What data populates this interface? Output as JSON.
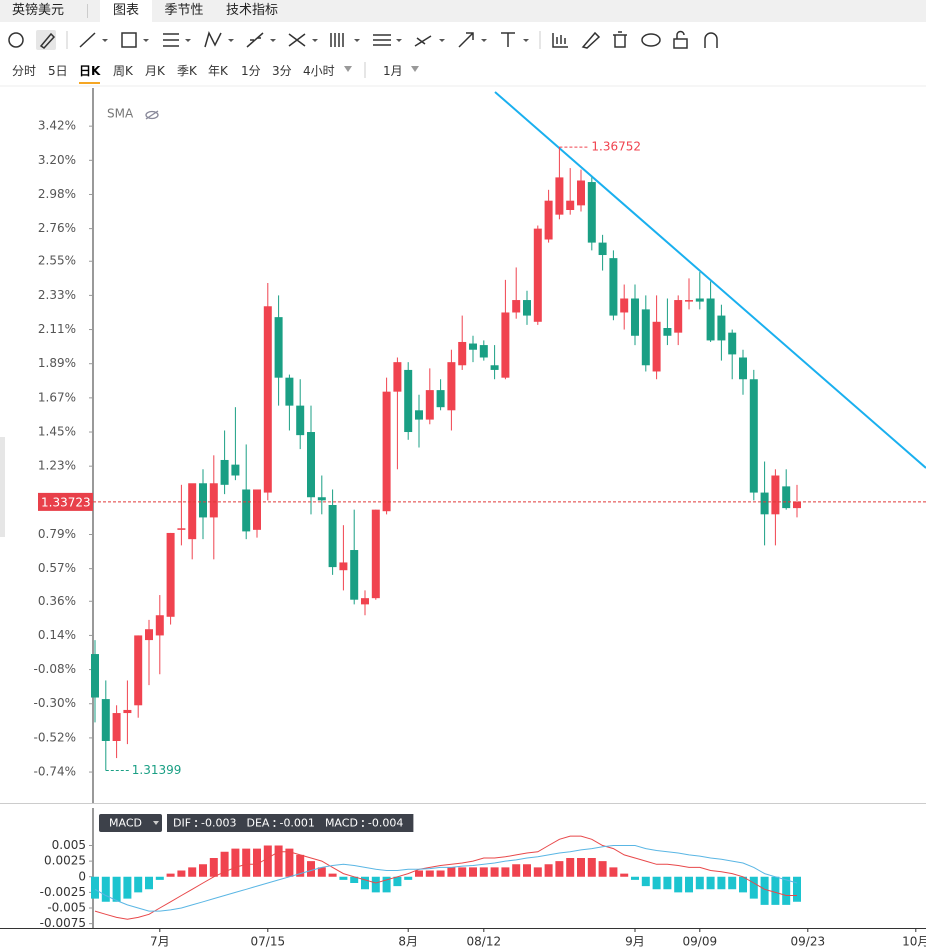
{
  "symbol": "英镑美元",
  "tabs": [
    "图表",
    "季节性",
    "技术指标"
  ],
  "periods": [
    "分时",
    "5日",
    "日K",
    "周K",
    "月K",
    "季K",
    "年K",
    "1分",
    "3分",
    "4小时"
  ],
  "range": "1月",
  "chart_data": [
    {
      "type": "candlestick",
      "indicator": "SMA",
      "up_color": "#f0434f",
      "down_color": "#1a9f84",
      "ylim": [
        -0.92,
        3.64
      ],
      "yticks": [
        {
          "value": 3.42,
          "label": "3.42%"
        },
        {
          "value": 3.2,
          "label": "3.20%"
        },
        {
          "value": 2.98,
          "label": "2.98%"
        },
        {
          "value": 2.76,
          "label": "2.76%"
        },
        {
          "value": 2.55,
          "label": "2.55%"
        },
        {
          "value": 2.33,
          "label": "2.33%"
        },
        {
          "value": 2.11,
          "label": "2.11%"
        },
        {
          "value": 1.89,
          "label": "1.89%"
        },
        {
          "value": 1.67,
          "label": "1.67%"
        },
        {
          "value": 1.45,
          "label": "1.45%"
        },
        {
          "value": 1.23,
          "label": "1.23%"
        },
        {
          "value": 0.79,
          "label": "0.79%"
        },
        {
          "value": 0.57,
          "label": "0.57%"
        },
        {
          "value": 0.36,
          "label": "0.36%"
        },
        {
          "value": 0.14,
          "label": "0.14%"
        },
        {
          "value": -0.08,
          "label": "-0.08%"
        },
        {
          "value": -0.3,
          "label": "-0.30%"
        },
        {
          "value": -0.52,
          "label": "-0.52%"
        },
        {
          "value": -0.74,
          "label": "-0.74%"
        }
      ],
      "high_label": "1.36752",
      "low_label": "1.31399",
      "last_label": "1.33723",
      "open": [
        0.02,
        -0.27,
        -0.54,
        -0.36,
        -0.31,
        0.11,
        0.14,
        0.26,
        0.82,
        0.76,
        1.12,
        0.9,
        1.27,
        1.24,
        1.08,
        0.82,
        1.06,
        2.19,
        1.8,
        1.62,
        1.45,
        1.03,
        0.98,
        0.56,
        0.69,
        0.34,
        0.38,
        0.94,
        1.71,
        1.85,
        1.59,
        1.53,
        1.72,
        1.59,
        1.88,
        2.02,
        2.01,
        1.88,
        1.8,
        2.22,
        2.3,
        2.16,
        2.69,
        2.85,
        2.88,
        2.91,
        3.06,
        2.67,
        2.57,
        2.22,
        2.31,
        2.24,
        1.84,
        2.12,
        2.09,
        2.29,
        2.31,
        2.31,
        2.2,
        2.09,
        1.93,
        1.79,
        1.06,
        0.92,
        1.1,
        0.96
      ],
      "high": [
        0.11,
        -0.15,
        -0.31,
        -0.15,
        0.14,
        0.24,
        0.4,
        0.8,
        1.11,
        1.11,
        1.21,
        1.3,
        1.46,
        1.61,
        1.37,
        1.08,
        2.41,
        2.33,
        1.82,
        1.79,
        1.62,
        1.17,
        1.08,
        0.85,
        0.95,
        0.43,
        0.95,
        1.8,
        1.93,
        1.9,
        1.69,
        1.86,
        1.79,
        1.98,
        2.2,
        2.07,
        2.04,
        2.01,
        2.43,
        2.51,
        2.36,
        2.78,
        3.01,
        3.285,
        3.15,
        3.14,
        3.09,
        2.72,
        2.62,
        2.4,
        2.4,
        2.33,
        2.33,
        2.31,
        2.33,
        2.44,
        2.48,
        2.42,
        2.27,
        2.11,
        1.98,
        1.85,
        1.26,
        1.21,
        1.21,
        1.11
      ],
      "low": [
        -0.42,
        -0.73,
        -0.65,
        -0.56,
        -0.39,
        -0.18,
        -0.11,
        0.21,
        0.72,
        0.63,
        0.76,
        0.63,
        1.05,
        1.14,
        0.76,
        0.77,
        1.01,
        1.62,
        1.46,
        1.34,
        0.92,
        0.92,
        0.53,
        0.43,
        0.34,
        0.27,
        0.37,
        0.92,
        1.21,
        1.4,
        1.35,
        1.5,
        1.59,
        1.46,
        1.85,
        1.9,
        1.91,
        1.79,
        1.79,
        2.18,
        2.14,
        2.14,
        2.67,
        2.82,
        2.85,
        2.87,
        2.62,
        2.49,
        2.17,
        2.11,
        2.01,
        1.84,
        1.79,
        2.01,
        2.01,
        2.24,
        2.24,
        2.03,
        1.91,
        1.79,
        1.69,
        1.01,
        0.72,
        0.72,
        0.95,
        0.9
      ],
      "close": [
        -0.26,
        -0.54,
        -0.36,
        -0.34,
        0.14,
        0.18,
        0.27,
        0.8,
        0.83,
        1.12,
        0.9,
        1.12,
        1.11,
        1.17,
        0.81,
        1.08,
        2.26,
        1.8,
        1.62,
        1.43,
        1.03,
        1.01,
        0.58,
        0.61,
        0.37,
        0.38,
        0.95,
        1.71,
        1.9,
        1.45,
        1.53,
        1.72,
        1.61,
        1.9,
        2.03,
        1.98,
        1.93,
        1.85,
        2.22,
        2.3,
        2.2,
        2.76,
        2.94,
        3.09,
        2.94,
        3.07,
        2.67,
        2.59,
        2.2,
        2.31,
        2.07,
        1.88,
        2.16,
        2.07,
        2.3,
        2.3,
        2.29,
        2.04,
        2.04,
        1.95,
        1.79,
        1.06,
        0.92,
        1.17,
        0.96,
        1.0
      ]
    },
    {
      "type": "macd",
      "indicator": "MACD",
      "ylim": [
        -0.0082,
        0.011
      ],
      "yticks": [
        0.005,
        0.0025,
        0,
        -0.0025,
        -0.005,
        -0.0075
      ],
      "xticks": [
        {
          "value": 6,
          "label": "7月"
        },
        {
          "value": 16,
          "label": "07/15"
        },
        {
          "value": 29,
          "label": "8月"
        },
        {
          "value": 36,
          "label": "08/12"
        },
        {
          "value": 50,
          "label": "9月"
        },
        {
          "value": 56,
          "label": "09/09"
        },
        {
          "value": 66,
          "label": "09/23"
        },
        {
          "value": 76,
          "label": "10月"
        }
      ],
      "series": [
        {
          "name": "DIF",
          "color": "#e8484a",
          "values": [
            -0.0055,
            -0.006,
            -0.0065,
            -0.0068,
            -0.0065,
            -0.006,
            -0.005,
            -0.004,
            -0.003,
            -0.002,
            -0.001,
            0,
            0.0008,
            0.0015,
            0.002,
            0.002,
            0.003,
            0.004,
            0.004,
            0.0035,
            0.003,
            0.0025,
            0.0015,
            0.0005,
            0,
            -0.0005,
            -0.001,
            -0.0005,
            0,
            0.0005,
            0.0012,
            0.0015,
            0.0018,
            0.002,
            0.0022,
            0.0025,
            0.003,
            0.003,
            0.0032,
            0.0035,
            0.0038,
            0.004,
            0.005,
            0.006,
            0.0065,
            0.0065,
            0.006,
            0.005,
            0.0045,
            0.0035,
            0.003,
            0.0025,
            0.002,
            0.002,
            0.0018,
            0.0015,
            0.0015,
            0.001,
            0.0008,
            0.0005,
            0,
            -0.001,
            -0.002,
            -0.0025,
            -0.003,
            -0.003
          ]
        },
        {
          "name": "DEA",
          "color": "#5ab6e4",
          "values": [
            -0.002,
            -0.003,
            -0.0038,
            -0.0045,
            -0.005,
            -0.0055,
            -0.0055,
            -0.0053,
            -0.005,
            -0.0045,
            -0.004,
            -0.0035,
            -0.003,
            -0.0025,
            -0.002,
            -0.0015,
            -0.001,
            -0.0005,
            0,
            0.0005,
            0.001,
            0.0015,
            0.0018,
            0.002,
            0.0018,
            0.0015,
            0.0012,
            0.001,
            0.001,
            0.0012,
            0.0012,
            0.0013,
            0.0015,
            0.0015,
            0.0017,
            0.0018,
            0.002,
            0.0022,
            0.0025,
            0.0027,
            0.003,
            0.0032,
            0.0035,
            0.0038,
            0.004,
            0.0043,
            0.0045,
            0.0048,
            0.005,
            0.005,
            0.005,
            0.0045,
            0.0042,
            0.004,
            0.0038,
            0.0035,
            0.0033,
            0.003,
            0.0028,
            0.0025,
            0.0022,
            0.0015,
            0.0005,
            0,
            -0.0005,
            -0.001
          ]
        },
        {
          "name": "MACD",
          "color": "#f0434f",
          "negative_color": "#1cc4cf",
          "values": [
            -0.0035,
            -0.004,
            -0.004,
            -0.0035,
            -0.0025,
            -0.002,
            -0.0005,
            0.0005,
            0.001,
            0.0015,
            0.002,
            0.003,
            0.004,
            0.0045,
            0.0045,
            0.0045,
            0.005,
            0.005,
            0.0045,
            0.0035,
            0.0025,
            0.0015,
            0.0005,
            -0.0005,
            -0.001,
            -0.002,
            -0.0025,
            -0.0025,
            -0.0015,
            -0.0005,
            0.001,
            0.001,
            0.001,
            0.0015,
            0.0015,
            0.0015,
            0.0015,
            0.0015,
            0.0015,
            0.002,
            0.002,
            0.0015,
            0.002,
            0.0025,
            0.003,
            0.003,
            0.003,
            0.0025,
            0.0015,
            0.0005,
            -0.0005,
            -0.0015,
            -0.002,
            -0.002,
            -0.0025,
            -0.0025,
            -0.002,
            -0.002,
            -0.002,
            -0.002,
            -0.0025,
            -0.0035,
            -0.0045,
            -0.0045,
            -0.0045,
            -0.004
          ]
        }
      ]
    }
  ]
}
